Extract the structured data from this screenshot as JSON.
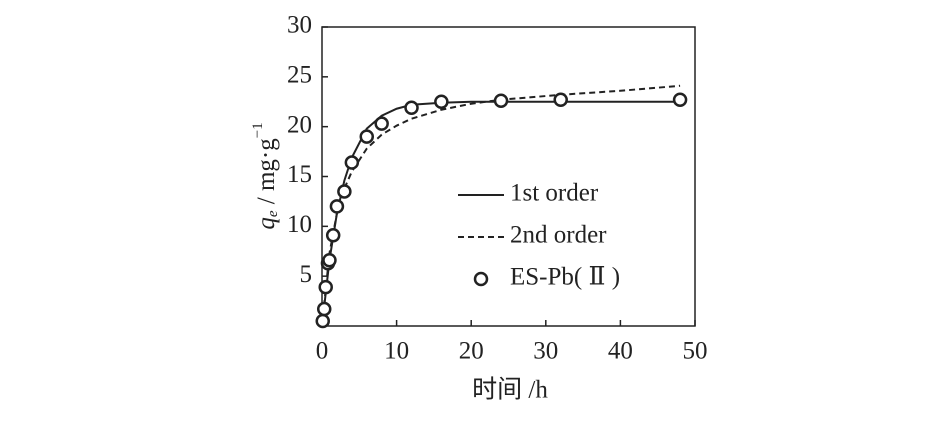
{
  "chart_data": {
    "type": "line",
    "x_label": "时间 /h",
    "y_label_parts": [
      "q",
      "e",
      " / mg·g",
      "−1"
    ],
    "xlim": [
      0,
      50
    ],
    "xticks": [
      0,
      10,
      20,
      30,
      40,
      50
    ],
    "ylim": [
      0,
      30
    ],
    "yticks": [
      5,
      10,
      15,
      20,
      25,
      30
    ],
    "legend": "right",
    "series": [
      {
        "name": "1st order",
        "kind": "line",
        "style": "solid",
        "color": "#222222",
        "x": [
          0,
          1,
          2,
          3,
          4,
          6,
          8,
          10,
          12,
          16,
          20,
          24,
          32,
          40,
          48
        ],
        "values": [
          0,
          6.6,
          11.3,
          14.6,
          16.9,
          19.8,
          21.1,
          21.8,
          22.2,
          22.4,
          22.5,
          22.5,
          22.5,
          22.5,
          22.5
        ]
      },
      {
        "name": "2nd order",
        "kind": "line",
        "style": "dashed",
        "color": "#222222",
        "x": [
          0,
          1,
          2,
          3,
          4,
          6,
          8,
          10,
          12,
          16,
          20,
          24,
          32,
          40,
          48
        ],
        "values": [
          0,
          7.3,
          11.3,
          13.8,
          15.5,
          17.8,
          19.2,
          20.1,
          20.8,
          21.7,
          22.3,
          22.7,
          23.2,
          23.6,
          24.1
        ]
      },
      {
        "name": "ES-Pb( Ⅱ )",
        "kind": "scatter",
        "style": "circle",
        "color": "#222222",
        "x": [
          0.1,
          0.3,
          0.5,
          0.8,
          1,
          1.5,
          2,
          3,
          4,
          6,
          8,
          12,
          16,
          24,
          32,
          48
        ],
        "values": [
          0.5,
          1.7,
          3.9,
          6.3,
          6.6,
          9.1,
          12,
          13.5,
          16.4,
          19,
          20.3,
          21.9,
          22.5,
          22.6,
          22.7,
          22.7
        ]
      }
    ]
  }
}
